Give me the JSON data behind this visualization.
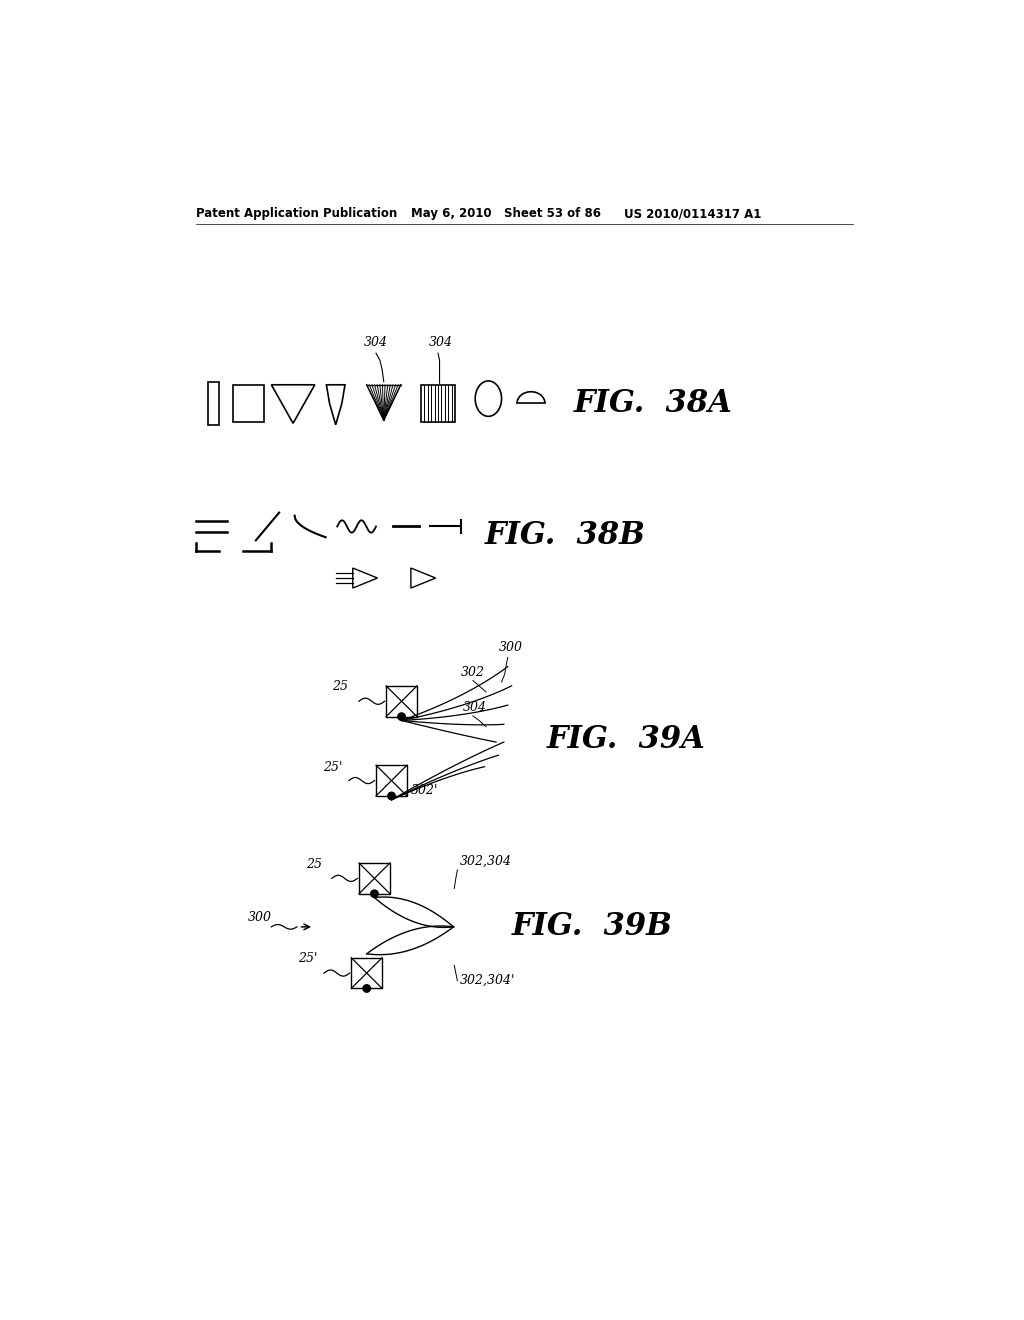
{
  "bg_color": "#ffffff",
  "header_left": "Patent Application Publication",
  "header_mid": "May 6, 2010   Sheet 53 of 86",
  "header_right": "US 2010/0114317 A1",
  "fig38a_label": "FIG.  38A",
  "fig38b_label": "FIG.  38B",
  "fig39a_label": "FIG.  39A",
  "fig39b_label": "FIG.  39B",
  "label_304_left": "304",
  "label_304_right": "304",
  "label_300_39a": "300",
  "label_302_39a": "302",
  "label_304_39a": "304",
  "label_25_39a_top": "25",
  "label_25_39a_bot": "25'",
  "label_302p_39a": "302'",
  "label_25_39b_top": "25",
  "label_25_39b_bot": "25'",
  "label_300_39b": "300",
  "label_302_304_39b": "302,304",
  "label_302_304p_39b": "302,304'"
}
